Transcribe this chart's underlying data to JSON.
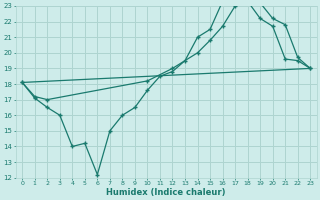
{
  "xlabel": "Humidex (Indice chaleur)",
  "bg_color": "#ceecea",
  "grid_color": "#aed4d0",
  "line_color": "#1a7a6e",
  "xlim": [
    -0.5,
    23.5
  ],
  "ylim": [
    12,
    23
  ],
  "xticks": [
    0,
    1,
    2,
    3,
    4,
    5,
    6,
    7,
    8,
    9,
    10,
    11,
    12,
    13,
    14,
    15,
    16,
    17,
    18,
    19,
    20,
    21,
    22,
    23
  ],
  "yticks": [
    12,
    13,
    14,
    15,
    16,
    17,
    18,
    19,
    20,
    21,
    22,
    23
  ],
  "line1_x": [
    0,
    1,
    2,
    3,
    4,
    5,
    6,
    7,
    8,
    9,
    10,
    11,
    12,
    13,
    14,
    15,
    16,
    17,
    18,
    19,
    20,
    21,
    22,
    23
  ],
  "line1_y": [
    18.1,
    17.1,
    16.5,
    16.0,
    14.0,
    14.2,
    12.2,
    15.0,
    16.0,
    16.5,
    17.6,
    18.5,
    18.8,
    19.5,
    21.0,
    21.5,
    23.3,
    23.1,
    23.3,
    22.2,
    21.7,
    19.6,
    19.5,
    19.0
  ],
  "line2_x": [
    0,
    23
  ],
  "line2_y": [
    18.1,
    19.0
  ],
  "line3_x": [
    0,
    1,
    2,
    10,
    12,
    14,
    15,
    16,
    17,
    18,
    19,
    20,
    21,
    22,
    23
  ],
  "line3_y": [
    18.1,
    17.2,
    17.0,
    18.2,
    19.0,
    20.0,
    20.8,
    21.7,
    23.0,
    23.3,
    23.2,
    22.2,
    21.8,
    19.7,
    19.0
  ]
}
